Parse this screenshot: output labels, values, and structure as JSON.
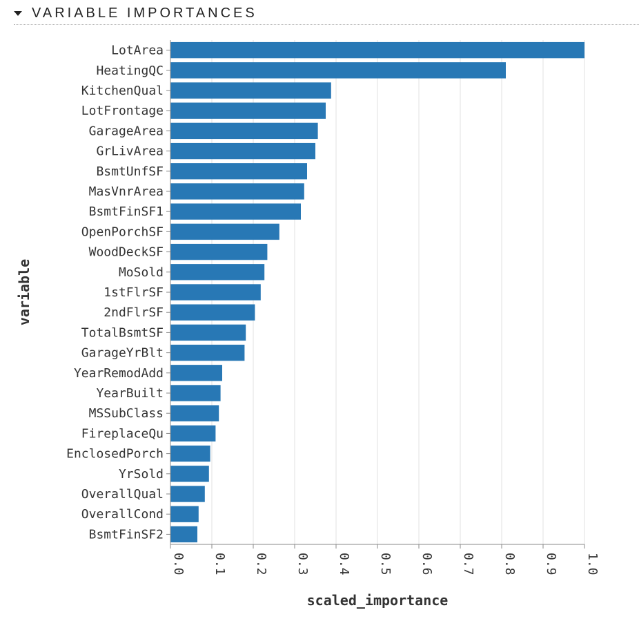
{
  "header": {
    "title": "VARIABLE IMPORTANCES",
    "toggle_icon": "caret-down-icon"
  },
  "chart_data": {
    "type": "bar",
    "orientation": "horizontal",
    "xlabel": "scaled_importance",
    "ylabel": "variable",
    "xlim": [
      0,
      1
    ],
    "x_ticks": [
      "0.0",
      "0.1",
      "0.2",
      "0.3",
      "0.4",
      "0.5",
      "0.6",
      "0.7",
      "0.8",
      "0.9",
      "1.0"
    ],
    "grid": true,
    "bar_color": "#2878b5",
    "categories": [
      "LotArea",
      "HeatingQC",
      "KitchenQual",
      "LotFrontage",
      "GarageArea",
      "GrLivArea",
      "BsmtUnfSF",
      "MasVnrArea",
      "BsmtFinSF1",
      "OpenPorchSF",
      "WoodDeckSF",
      "MoSold",
      "1stFlrSF",
      "2ndFlrSF",
      "TotalBsmtSF",
      "GarageYrBlt",
      "YearRemodAdd",
      "YearBuilt",
      "MSSubClass",
      "FireplaceQu",
      "EnclosedPorch",
      "YrSold",
      "OverallQual",
      "OverallCond",
      "BsmtFinSF2"
    ],
    "values": [
      1.0,
      0.81,
      0.388,
      0.375,
      0.356,
      0.35,
      0.33,
      0.323,
      0.315,
      0.263,
      0.234,
      0.227,
      0.218,
      0.204,
      0.182,
      0.179,
      0.125,
      0.121,
      0.117,
      0.109,
      0.096,
      0.093,
      0.083,
      0.068,
      0.065
    ]
  }
}
